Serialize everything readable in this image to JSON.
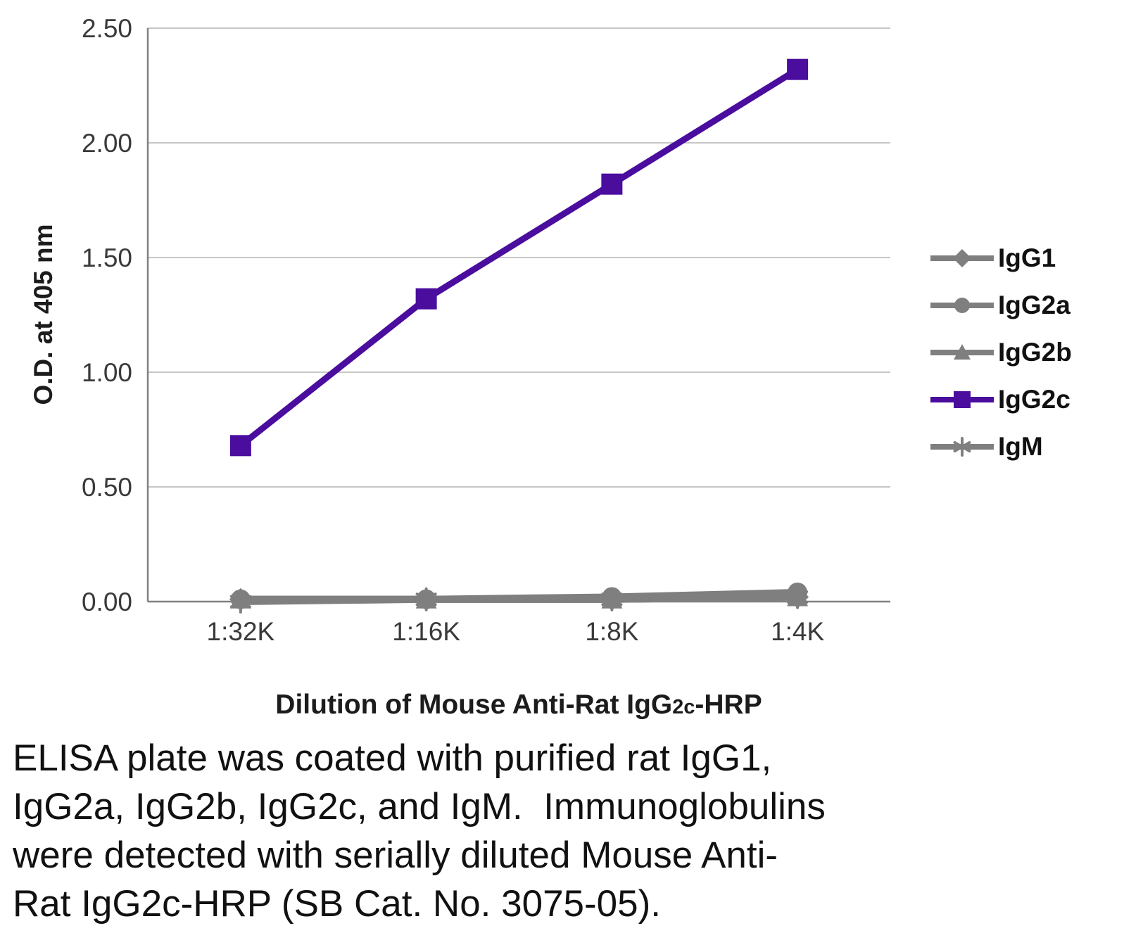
{
  "chart_data": {
    "type": "line",
    "title": "",
    "categories": [
      "1:32K",
      "1:16K",
      "1:8K",
      "1:4K"
    ],
    "series": [
      {
        "name": "IgG1",
        "marker": "diamond",
        "color": "#7f7f7f",
        "line_width": 10,
        "values": [
          0.01,
          0.01,
          0.01,
          0.02
        ]
      },
      {
        "name": "IgG2a",
        "marker": "circle",
        "color": "#7f7f7f",
        "line_width": 10,
        "values": [
          0.01,
          0.01,
          0.02,
          0.04
        ]
      },
      {
        "name": "IgG2b",
        "marker": "triangle",
        "color": "#7f7f7f",
        "line_width": 10,
        "values": [
          0.01,
          0.01,
          0.01,
          0.02
        ]
      },
      {
        "name": "IgG2c",
        "marker": "square",
        "color": "#4a0d9e",
        "line_width": 9,
        "values": [
          0.68,
          1.32,
          1.82,
          2.32
        ]
      },
      {
        "name": "IgM",
        "marker": "star",
        "color": "#7f7f7f",
        "line_width": 10,
        "values": [
          0.0,
          0.01,
          0.01,
          0.02
        ]
      }
    ],
    "ylabel": "O.D. at 405 nm",
    "xlabel_parts": {
      "prefix": "Dilution of Mouse Anti-Rat IgG",
      "sub": "2c",
      "suffix": "-HRP"
    },
    "ylim": [
      0,
      2.5
    ],
    "yticks": [
      {
        "value": 0.0,
        "label": "0.00"
      },
      {
        "value": 0.5,
        "label": "0.50"
      },
      {
        "value": 1.0,
        "label": "1.00"
      },
      {
        "value": 1.5,
        "label": "1.50"
      },
      {
        "value": 2.0,
        "label": "2.00"
      },
      {
        "value": 2.5,
        "label": "2.50"
      }
    ],
    "grid": true,
    "legend_position": "right"
  },
  "caption": {
    "lines": [
      "ELISA plate was coated with purified rat IgG1,",
      "IgG2a, IgG2b, IgG2c, and IgM.  Immunoglobulins",
      "were detected with serially diluted Mouse Anti-",
      "Rat IgG2c-HRP (SB Cat. No. 3075-05)."
    ]
  }
}
